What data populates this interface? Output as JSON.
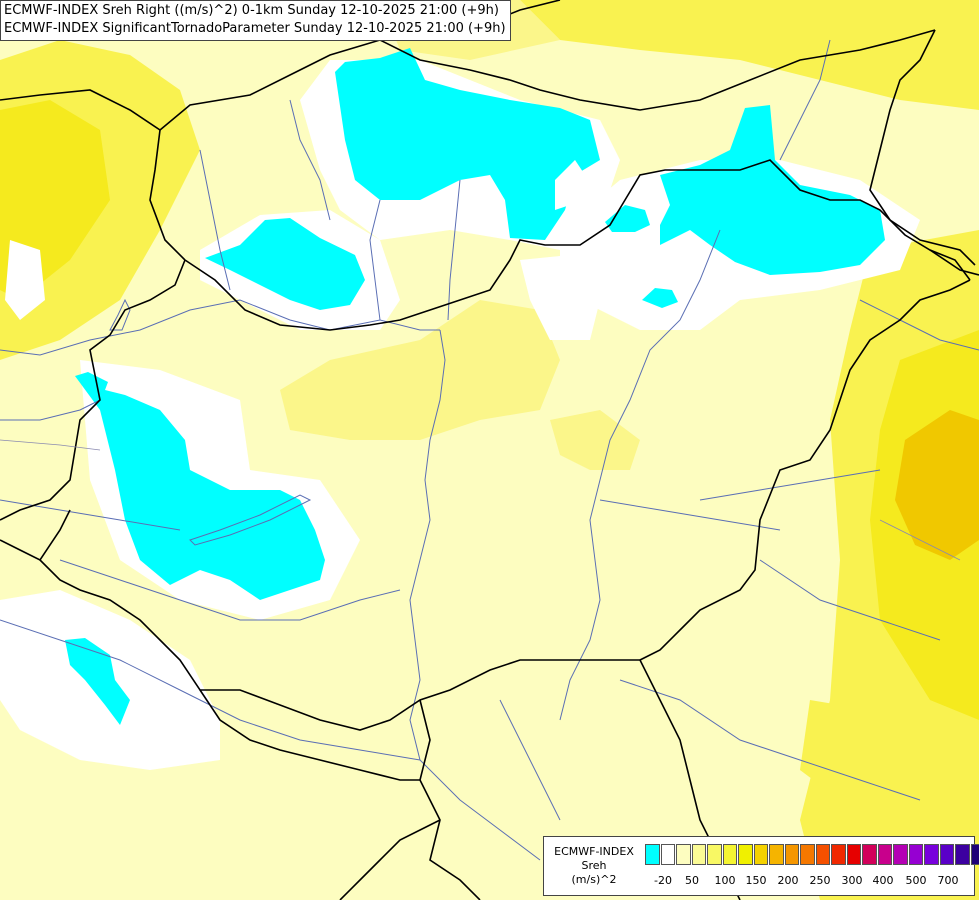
{
  "header": {
    "line1": "ECMWF-INDEX Sreh Right ((m/s)^2) 0-1km Sunday 12-10-2025 21:00 (+9h)",
    "line2": "ECMWF-INDEX SignificantTornadoParameter Sunday 12-10-2025 21:00 (+9h)"
  },
  "legend": {
    "title_line1": "ECMWF-INDEX",
    "title_line2": "Sreh",
    "title_line3": "(m/s)^2",
    "colors": [
      "#00ffff",
      "#ffffff",
      "#fdfdc0",
      "#fbfb96",
      "#f8f864",
      "#f5f532",
      "#f0f000",
      "#f5d200",
      "#f5b400",
      "#f59600",
      "#f57800",
      "#f55000",
      "#f02800",
      "#e60000",
      "#d2005a",
      "#c8008c",
      "#b400b4",
      "#9600d2",
      "#7800dc",
      "#5a00c8",
      "#3c00a0",
      "#1e0078"
    ],
    "ticks": [
      "-20",
      "50",
      "100",
      "150",
      "200",
      "250",
      "300",
      "400",
      "500",
      "700"
    ]
  },
  "map": {
    "cyan": "#00ffff",
    "white": "#ffffff",
    "pale_yellow": "#fdfdc0",
    "light_yellow": "#fbf68a",
    "yellow": "#f9f250",
    "bright_yellow": "#f5ea1e",
    "gold": "#f0c800",
    "border_color": "#000000",
    "river_color": "#5a6eb4"
  }
}
